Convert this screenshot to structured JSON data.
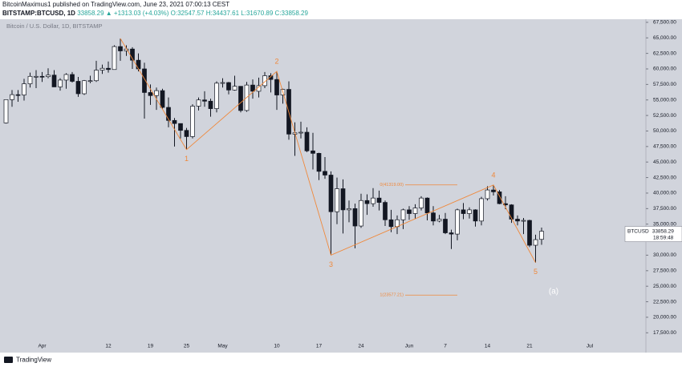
{
  "header": {
    "title": "BitcoinMaximus1 published on TradingView.com, June 23, 2021 07:00:13 CEST",
    "symbol": "BITSTAMP:BTCUSD, 1D",
    "quote": "33858.29 ▲ +1313.03 (+4.03%) O:32547.57 H:34437.61 L:31670.89 C:33858.29"
  },
  "footer": {
    "brand": "TradingView"
  },
  "chart_data": {
    "type": "candlestick",
    "watermark": "Bitcoin / U.S. Dollar, 1D, BITSTAMP",
    "categories": [
      null,
      null,
      null,
      null,
      null,
      null,
      "Apr",
      null,
      null,
      null,
      null,
      null,
      null,
      null,
      null,
      null,
      null,
      "12",
      null,
      null,
      null,
      null,
      null,
      null,
      "19",
      null,
      null,
      null,
      null,
      null,
      "25",
      null,
      null,
      null,
      null,
      null,
      "May",
      null,
      null,
      null,
      null,
      null,
      null,
      null,
      null,
      "10",
      null,
      null,
      null,
      null,
      null,
      null,
      "17",
      null,
      null,
      null,
      null,
      null,
      null,
      "24",
      null,
      null,
      null,
      null,
      null,
      null,
      null,
      "Jun",
      null,
      null,
      null,
      null,
      null,
      "7",
      null,
      null,
      null,
      null,
      null,
      null,
      "14",
      null,
      null,
      null,
      null,
      null,
      null,
      "21",
      null,
      null,
      null,
      null,
      null,
      null,
      null,
      null,
      null,
      "Jul"
    ],
    "open": [
      51300,
      55050,
      55850,
      55800,
      57600,
      58800,
      58800,
      58750,
      59000,
      57100,
      58200,
      59100,
      58000,
      56000,
      58100,
      58100,
      59800,
      60100,
      59900,
      63600,
      62900,
      63200,
      61400,
      60000,
      56200,
      55700,
      56500,
      53800,
      51700,
      51200,
      50100,
      49100,
      54000,
      55000,
      54800,
      53600,
      57700,
      57800,
      56600,
      57200,
      53300,
      57400,
      56400,
      57300,
      58900,
      58300,
      55800,
      56700,
      49500,
      49700,
      49800,
      46800,
      46400,
      43500,
      42900,
      37000,
      40700,
      37300,
      37500,
      34700,
      38800,
      38300,
      39200,
      38500,
      35700,
      34600,
      35700,
      37300,
      36700,
      37600,
      39200,
      36800,
      35500,
      35800,
      33600,
      33400,
      37300,
      36700,
      37300,
      35500,
      39100,
      40500,
      40200,
      38300,
      38100,
      35800,
      35500,
      35600,
      31600,
      32547.57,
      null,
      null,
      null,
      null,
      null,
      null,
      null,
      null
    ],
    "high": [
      55100,
      56600,
      56600,
      58400,
      59400,
      59800,
      59500,
      60100,
      59800,
      58500,
      59300,
      59500,
      58700,
      58200,
      58900,
      61300,
      60700,
      61200,
      63800,
      64900,
      63800,
      63500,
      62500,
      61000,
      57500,
      57000,
      56800,
      55400,
      52100,
      51200,
      50500,
      54300,
      55400,
      56400,
      55200,
      58000,
      58500,
      57900,
      58900,
      57200,
      57900,
      58300,
      58600,
      59500,
      59300,
      59600,
      56800,
      58000,
      51400,
      51500,
      50600,
      49700,
      46500,
      45800,
      43500,
      42500,
      42200,
      38800,
      38300,
      39900,
      39800,
      40800,
      40400,
      38800,
      37300,
      36400,
      37500,
      37900,
      38200,
      39500,
      39300,
      37900,
      36500,
      36800,
      34100,
      37500,
      38400,
      37700,
      37400,
      39400,
      41100,
      41300,
      40500,
      39500,
      38200,
      36400,
      36000,
      35700,
      33300,
      34437.61,
      null,
      null,
      null,
      null,
      null,
      null,
      null,
      null
    ],
    "low": [
      51200,
      53900,
      54700,
      54900,
      57000,
      56900,
      57900,
      58500,
      57100,
      56500,
      56800,
      57800,
      55500,
      55800,
      57700,
      57900,
      59200,
      59400,
      59900,
      61300,
      62100,
      60000,
      59600,
      52000,
      54200,
      53400,
      53600,
      50600,
      47500,
      48800,
      47000,
      48800,
      53300,
      53900,
      52300,
      53000,
      57000,
      55900,
      56500,
      53000,
      53100,
      55200,
      55400,
      56900,
      56200,
      53400,
      54400,
      48600,
      46000,
      48800,
      46600,
      43800,
      42100,
      42300,
      30000,
      35000,
      33500,
      35300,
      31100,
      34400,
      36500,
      37800,
      37200,
      34700,
      33700,
      33400,
      34200,
      35700,
      35900,
      37200,
      35600,
      34800,
      35300,
      33400,
      31000,
      32400,
      35800,
      35900,
      34600,
      34800,
      38800,
      39600,
      38200,
      37400,
      35200,
      34800,
      33400,
      31300,
      28800,
      31670.89,
      null,
      null,
      null,
      null,
      null,
      null,
      null,
      null
    ],
    "close": [
      55050,
      55850,
      55800,
      57600,
      58800,
      58800,
      58750,
      59000,
      57100,
      58200,
      59100,
      58000,
      56000,
      58100,
      58100,
      59800,
      60100,
      59900,
      63600,
      62900,
      63200,
      61400,
      60000,
      56200,
      55700,
      56500,
      53800,
      51700,
      51200,
      50100,
      49100,
      54000,
      55000,
      54800,
      53600,
      57700,
      57800,
      56600,
      57200,
      53300,
      57400,
      56400,
      57300,
      58900,
      58300,
      55800,
      56700,
      49500,
      49700,
      49800,
      46800,
      46400,
      43500,
      42900,
      37000,
      40700,
      37300,
      37500,
      34700,
      38800,
      38300,
      39200,
      38500,
      35700,
      34600,
      35700,
      37300,
      36700,
      37600,
      39200,
      36800,
      35500,
      35800,
      33600,
      33400,
      37300,
      36700,
      37300,
      35500,
      39100,
      40500,
      40200,
      38300,
      38100,
      35800,
      35500,
      35600,
      31600,
      32500,
      33858.29,
      null,
      null,
      null,
      null,
      null,
      null,
      null,
      null
    ],
    "up_color": "#ffffff",
    "down_color": "#131722",
    "ylim": [
      14700,
      68000
    ],
    "yticks": [
      {
        "value": 17500,
        "label": "17,500.00"
      },
      {
        "value": 20000,
        "label": "20,000.00"
      },
      {
        "value": 22500,
        "label": "22,500.00"
      },
      {
        "value": 25000,
        "label": "25,000.00"
      },
      {
        "value": 27500,
        "label": "27,500.00"
      },
      {
        "value": 30000,
        "label": "30,000.00"
      },
      {
        "value": 35000,
        "label": "35,000.00"
      },
      {
        "value": 37500,
        "label": "37,500.00"
      },
      {
        "value": 40000,
        "label": "40,000.00"
      },
      {
        "value": 42500,
        "label": "42,500.00"
      },
      {
        "value": 45000,
        "label": "45,000.00"
      },
      {
        "value": 47500,
        "label": "47,500.00"
      },
      {
        "value": 50000,
        "label": "50,000.00"
      },
      {
        "value": 52500,
        "label": "52,500.00"
      },
      {
        "value": 55000,
        "label": "55,000.00"
      },
      {
        "value": 57500,
        "label": "57,500.00"
      },
      {
        "value": 60000,
        "label": "60,000.00"
      },
      {
        "value": 62500,
        "label": "62,500.00"
      },
      {
        "value": 65000,
        "label": "65,000.00"
      },
      {
        "value": 67500,
        "label": "67,500.00"
      }
    ],
    "grid": false,
    "last_price": {
      "name": "BTCUSD",
      "countdown": "18:59:48"
    },
    "waves": {
      "color": "#f0883a",
      "labels": [
        null,
        "1",
        "2",
        "3",
        "4",
        "5"
      ],
      "x": [
        19,
        30,
        45,
        54,
        81,
        88
      ],
      "values": [
        64900,
        47000,
        59600,
        30000,
        41300,
        28800
      ]
    },
    "fib_levels": [
      {
        "label": "0(41319.00)",
        "value": 41319
      },
      {
        "label": "1(23577.21)",
        "value": 23577.21
      }
    ],
    "annotation": "(a)"
  }
}
